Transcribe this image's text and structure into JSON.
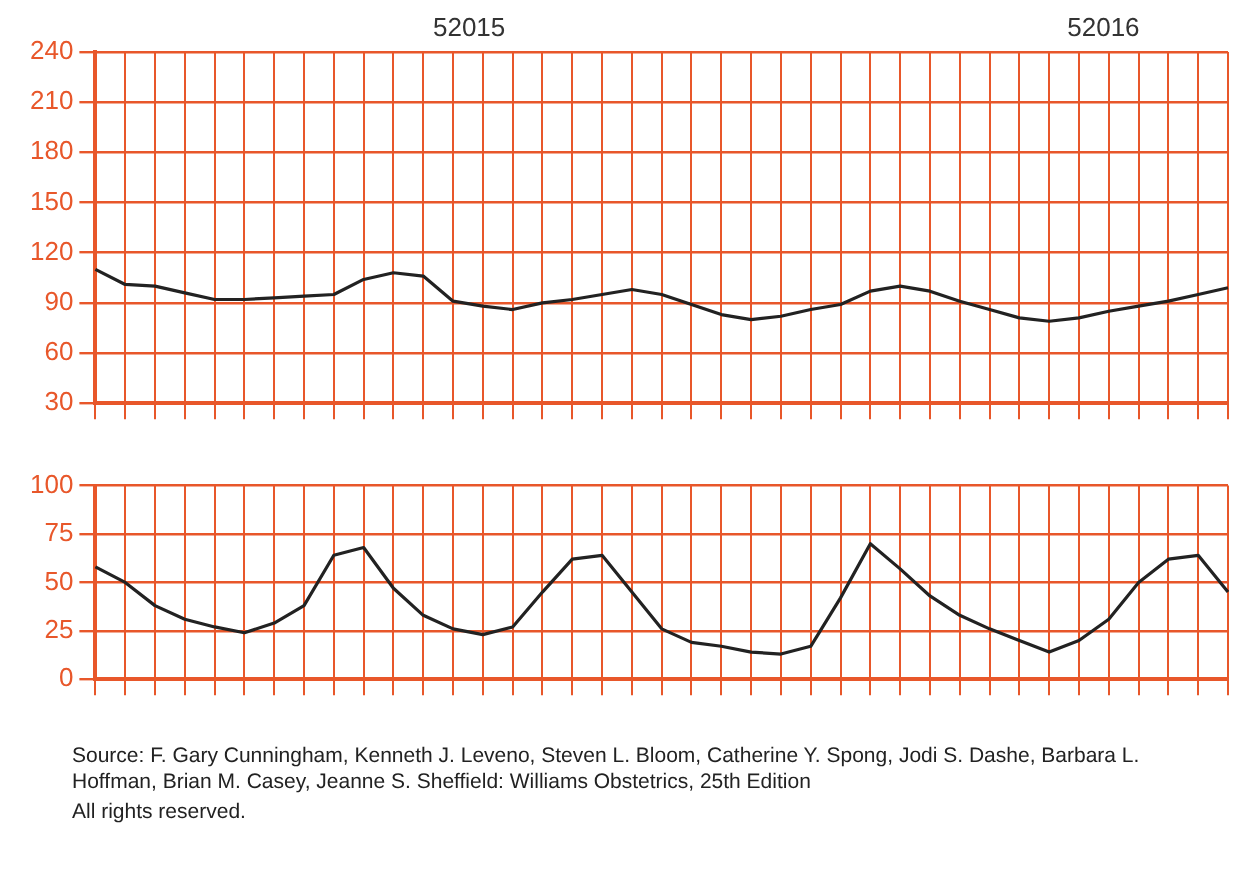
{
  "chart_data": [
    {
      "type": "line",
      "categories": [
        null,
        null,
        null,
        null,
        null,
        null,
        null,
        null,
        null,
        null,
        null,
        null,
        null,
        null,
        null,
        null,
        null,
        null,
        null,
        null,
        null,
        null,
        null,
        null,
        null,
        null,
        null,
        null,
        null,
        null,
        null,
        null,
        null,
        null,
        null,
        null,
        null,
        null,
        null
      ],
      "series": [
        {
          "color": "#222222",
          "values": [
            110,
            101,
            100,
            96,
            92,
            92,
            93,
            94,
            95,
            104,
            108,
            106,
            91,
            88,
            86,
            90,
            92,
            95,
            98,
            95,
            89,
            83,
            80,
            82,
            86,
            89,
            97,
            100,
            97,
            91,
            86,
            81,
            79,
            81,
            85,
            88,
            91,
            95,
            99
          ]
        }
      ],
      "ylim": [
        30,
        240
      ],
      "yticks": [
        30,
        60,
        90,
        120,
        150,
        180,
        210,
        240
      ],
      "grid": true,
      "legend": false,
      "marker": "none",
      "annotations": [
        "52015",
        "52016"
      ]
    },
    {
      "type": "line",
      "categories": [
        null,
        null,
        null,
        null,
        null,
        null,
        null,
        null,
        null,
        null,
        null,
        null,
        null,
        null,
        null,
        null,
        null,
        null,
        null,
        null,
        null,
        null,
        null,
        null,
        null,
        null,
        null,
        null,
        null,
        null,
        null,
        null,
        null,
        null,
        null,
        null,
        null,
        null,
        null
      ],
      "series": [
        {
          "color": "#222222",
          "values": [
            58,
            50,
            38,
            31,
            27,
            24,
            29,
            38,
            64,
            68,
            47,
            33,
            26,
            23,
            27,
            45,
            62,
            64,
            45,
            26,
            19,
            17,
            14,
            13,
            17,
            42,
            70,
            57,
            43,
            33,
            26,
            20,
            14,
            20,
            31,
            50,
            62,
            64,
            45
          ]
        }
      ],
      "ylim": [
        0,
        100
      ],
      "yticks": [
        0,
        25,
        50,
        75,
        100
      ],
      "grid": true,
      "legend": false,
      "marker": "none",
      "annotations": [
        "Source: F. Gary Cunningham, Kenneth J. Leveno, Steven L. Bloom, Catherine Y. Spong, Jodi S. Dashe, Barbara L. Hoffman, Brian M. Casey, Jeanne S. Sheffield: Williams Obstetrics, 25th Edition",
        "All rights reserved."
      ]
    }
  ]
}
